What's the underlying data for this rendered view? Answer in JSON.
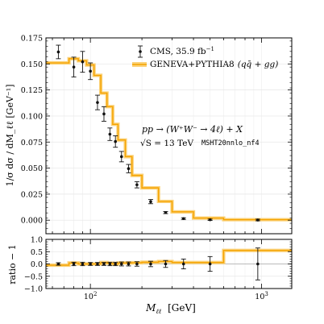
{
  "chart_data": [
    {
      "type": "line",
      "panel": "main",
      "ylabel": "1/σ dσ / dM_ℓℓ [GeV⁻¹]",
      "ylim": [
        -0.013,
        0.175
      ],
      "xlim": [
        55,
        1500
      ],
      "xscale": "log",
      "yticks": [
        "0.000",
        "0.025",
        "0.050",
        "0.075",
        "0.100",
        "0.125",
        "0.150",
        "0.175"
      ],
      "grid": true,
      "legend_position": "top-right",
      "legend": [
        {
          "label_main": "CMS, 35.9 fb",
          "label_sup": "−1",
          "marker": "errorbar-point",
          "color": "#111111"
        },
        {
          "label_main": "GENEVA+PYTHIA8",
          "label_tail": "(qq̄ + gg)",
          "marker": "band",
          "color": "#f5a300"
        }
      ],
      "annotations": {
        "process": "pp → (W⁺W⁻ → 4ℓ) + X",
        "energy": "√S = 13 TeV",
        "pdf": "MSHT20nnlo_nf4"
      },
      "series": [
        {
          "name": "GENEVA+PYTHIA8 (qq̄ + gg)",
          "style": "step",
          "color": "#f5a300",
          "edges": [
            55,
            75,
            85,
            95,
            105,
            115,
            125,
            135,
            145,
            160,
            175,
            200,
            250,
            300,
            400,
            600,
            1500
          ],
          "values": [
            0.151,
            0.155,
            0.153,
            0.149,
            0.139,
            0.122,
            0.109,
            0.092,
            0.077,
            0.061,
            0.043,
            0.031,
            0.018,
            0.008,
            0.002,
            0.0005
          ]
        },
        {
          "name": "CMS, 35.9 fb⁻¹",
          "style": "points-with-errors",
          "color": "#111111",
          "x": [
            65,
            80,
            90,
            100,
            110,
            120,
            130,
            140,
            152,
            167,
            187,
            225,
            275,
            350,
            500,
            950
          ],
          "y": [
            0.1615,
            0.147,
            0.152,
            0.143,
            0.113,
            0.102,
            0.0825,
            0.0755,
            0.061,
            0.0495,
            0.034,
            0.0178,
            0.0073,
            0.0015,
            0.0004,
            0.0002
          ],
          "err": [
            0.0065,
            0.0095,
            0.01,
            0.008,
            0.007,
            0.007,
            0.006,
            0.0055,
            0.005,
            0.004,
            0.003,
            0.002,
            0.001,
            0.0008,
            0.0006,
            0.0008
          ]
        }
      ]
    },
    {
      "type": "line",
      "panel": "ratio",
      "xlabel_main": "M",
      "xlabel_sub": "ℓℓ",
      "xlabel_unit": "[GeV]",
      "ylabel": "ratio − 1",
      "ylim": [
        -1.0,
        1.0
      ],
      "xlim": [
        55,
        1500
      ],
      "xscale": "log",
      "yticks": [
        "−1.0",
        "−0.5",
        "0.0",
        "0.5",
        "1.0"
      ],
      "xticks": [
        {
          "base": "10",
          "exp": "2",
          "value": 100
        },
        {
          "base": "10",
          "exp": "3",
          "value": 1000
        }
      ],
      "grid": true,
      "series": [
        {
          "name": "GENEVA+PYTHIA8 ratio − 1",
          "style": "step",
          "color": "#f5a300",
          "edges": [
            55,
            75,
            85,
            95,
            105,
            115,
            125,
            135,
            145,
            160,
            175,
            200,
            250,
            300,
            400,
            600,
            1500
          ],
          "values": [
            -0.05,
            0.04,
            0.0,
            0.0,
            0.0,
            0.06,
            0.03,
            0.0,
            0.04,
            0.04,
            0.05,
            0.07,
            0.1,
            0.06,
            0.06,
            0.55
          ]
        },
        {
          "name": "CMS ratio − 1",
          "style": "points-with-errors",
          "color": "#111111",
          "x": [
            65,
            80,
            90,
            100,
            110,
            120,
            130,
            140,
            152,
            167,
            187,
            225,
            275,
            350,
            500,
            950
          ],
          "y": [
            0.0,
            0.0,
            0.0,
            0.0,
            0.0,
            0.0,
            0.0,
            0.0,
            0.0,
            0.0,
            0.0,
            0.0,
            0.0,
            0.0,
            0.0,
            0.0
          ],
          "err": [
            0.05,
            0.07,
            0.07,
            0.06,
            0.06,
            0.06,
            0.07,
            0.07,
            0.08,
            0.08,
            0.09,
            0.11,
            0.14,
            0.2,
            0.3,
            0.65
          ]
        }
      ]
    }
  ]
}
